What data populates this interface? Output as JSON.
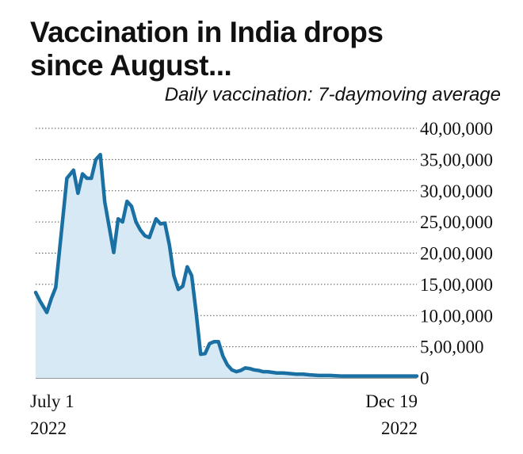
{
  "title": "Vaccination in India drops since August...",
  "subtitle": "Daily vaccination: 7-daymoving average",
  "colors": {
    "line": "#1a6fa3",
    "fill": "#d6e9f5",
    "grid": "#555555"
  },
  "x_labels": {
    "start_date": "July 1",
    "start_year": "2022",
    "end_date": "Dec 19",
    "end_year": "2022"
  },
  "chart_data": {
    "type": "area",
    "title": "Vaccination in India drops since August...",
    "subtitle": "Daily vaccination: 7-daymoving average",
    "xlabel": "",
    "ylabel": "",
    "x_range": [
      "2022-07-01",
      "2022-12-19"
    ],
    "ylim": [
      0,
      4000000
    ],
    "grid": true,
    "y_ticks": [
      {
        "value": 0,
        "label": "0"
      },
      {
        "value": 500000,
        "label": "5,00,000"
      },
      {
        "value": 1000000,
        "label": "10,00,000"
      },
      {
        "value": 1500000,
        "label": "15,00,000"
      },
      {
        "value": 2000000,
        "label": "20,00,000"
      },
      {
        "value": 2500000,
        "label": "25,00,000"
      },
      {
        "value": 3000000,
        "label": "30,00,000"
      },
      {
        "value": 3500000,
        "label": "35,00,000"
      },
      {
        "value": 4000000,
        "label": "40,00,000"
      }
    ],
    "series": [
      {
        "x": [
          "2022-07-01",
          "2022-07-03",
          "2022-07-06",
          "2022-07-08",
          "2022-07-10",
          "2022-07-13",
          "2022-07-15",
          "2022-07-18",
          "2022-07-20",
          "2022-07-22",
          "2022-07-24",
          "2022-07-26",
          "2022-07-28",
          "2022-07-30",
          "2022-08-01",
          "2022-08-03",
          "2022-08-05",
          "2022-08-07",
          "2022-08-09",
          "2022-08-11",
          "2022-08-13",
          "2022-08-15",
          "2022-08-17",
          "2022-08-19",
          "2022-08-21",
          "2022-08-24",
          "2022-08-26",
          "2022-08-28",
          "2022-08-30",
          "2022-09-01",
          "2022-09-03",
          "2022-09-05",
          "2022-09-07",
          "2022-09-09",
          "2022-09-11",
          "2022-09-13",
          "2022-09-15",
          "2022-09-17",
          "2022-09-19",
          "2022-09-21",
          "2022-09-23",
          "2022-09-25",
          "2022-09-27",
          "2022-09-29",
          "2022-10-01",
          "2022-10-03",
          "2022-10-05",
          "2022-10-07",
          "2022-10-09",
          "2022-10-11",
          "2022-10-13",
          "2022-10-15",
          "2022-10-17",
          "2022-10-20",
          "2022-10-23",
          "2022-10-26",
          "2022-10-29",
          "2022-11-01",
          "2022-11-05",
          "2022-11-10",
          "2022-11-15",
          "2022-11-20",
          "2022-11-25",
          "2022-12-01",
          "2022-12-07",
          "2022-12-13",
          "2022-12-19"
        ],
        "values": [
          1370000,
          1230000,
          1050000,
          1270000,
          1450000,
          2500000,
          3200000,
          3330000,
          2960000,
          3270000,
          3200000,
          3200000,
          3500000,
          3580000,
          2820000,
          2420000,
          2010000,
          2550000,
          2500000,
          2830000,
          2750000,
          2500000,
          2370000,
          2280000,
          2250000,
          2550000,
          2470000,
          2480000,
          2130000,
          1640000,
          1420000,
          1470000,
          1780000,
          1640000,
          1050000,
          380000,
          390000,
          550000,
          580000,
          580000,
          350000,
          210000,
          130000,
          100000,
          120000,
          160000,
          150000,
          130000,
          120000,
          100000,
          100000,
          90000,
          80000,
          80000,
          70000,
          60000,
          60000,
          50000,
          40000,
          40000,
          30000,
          30000,
          30000,
          30000,
          30000,
          30000,
          30000
        ]
      }
    ]
  }
}
